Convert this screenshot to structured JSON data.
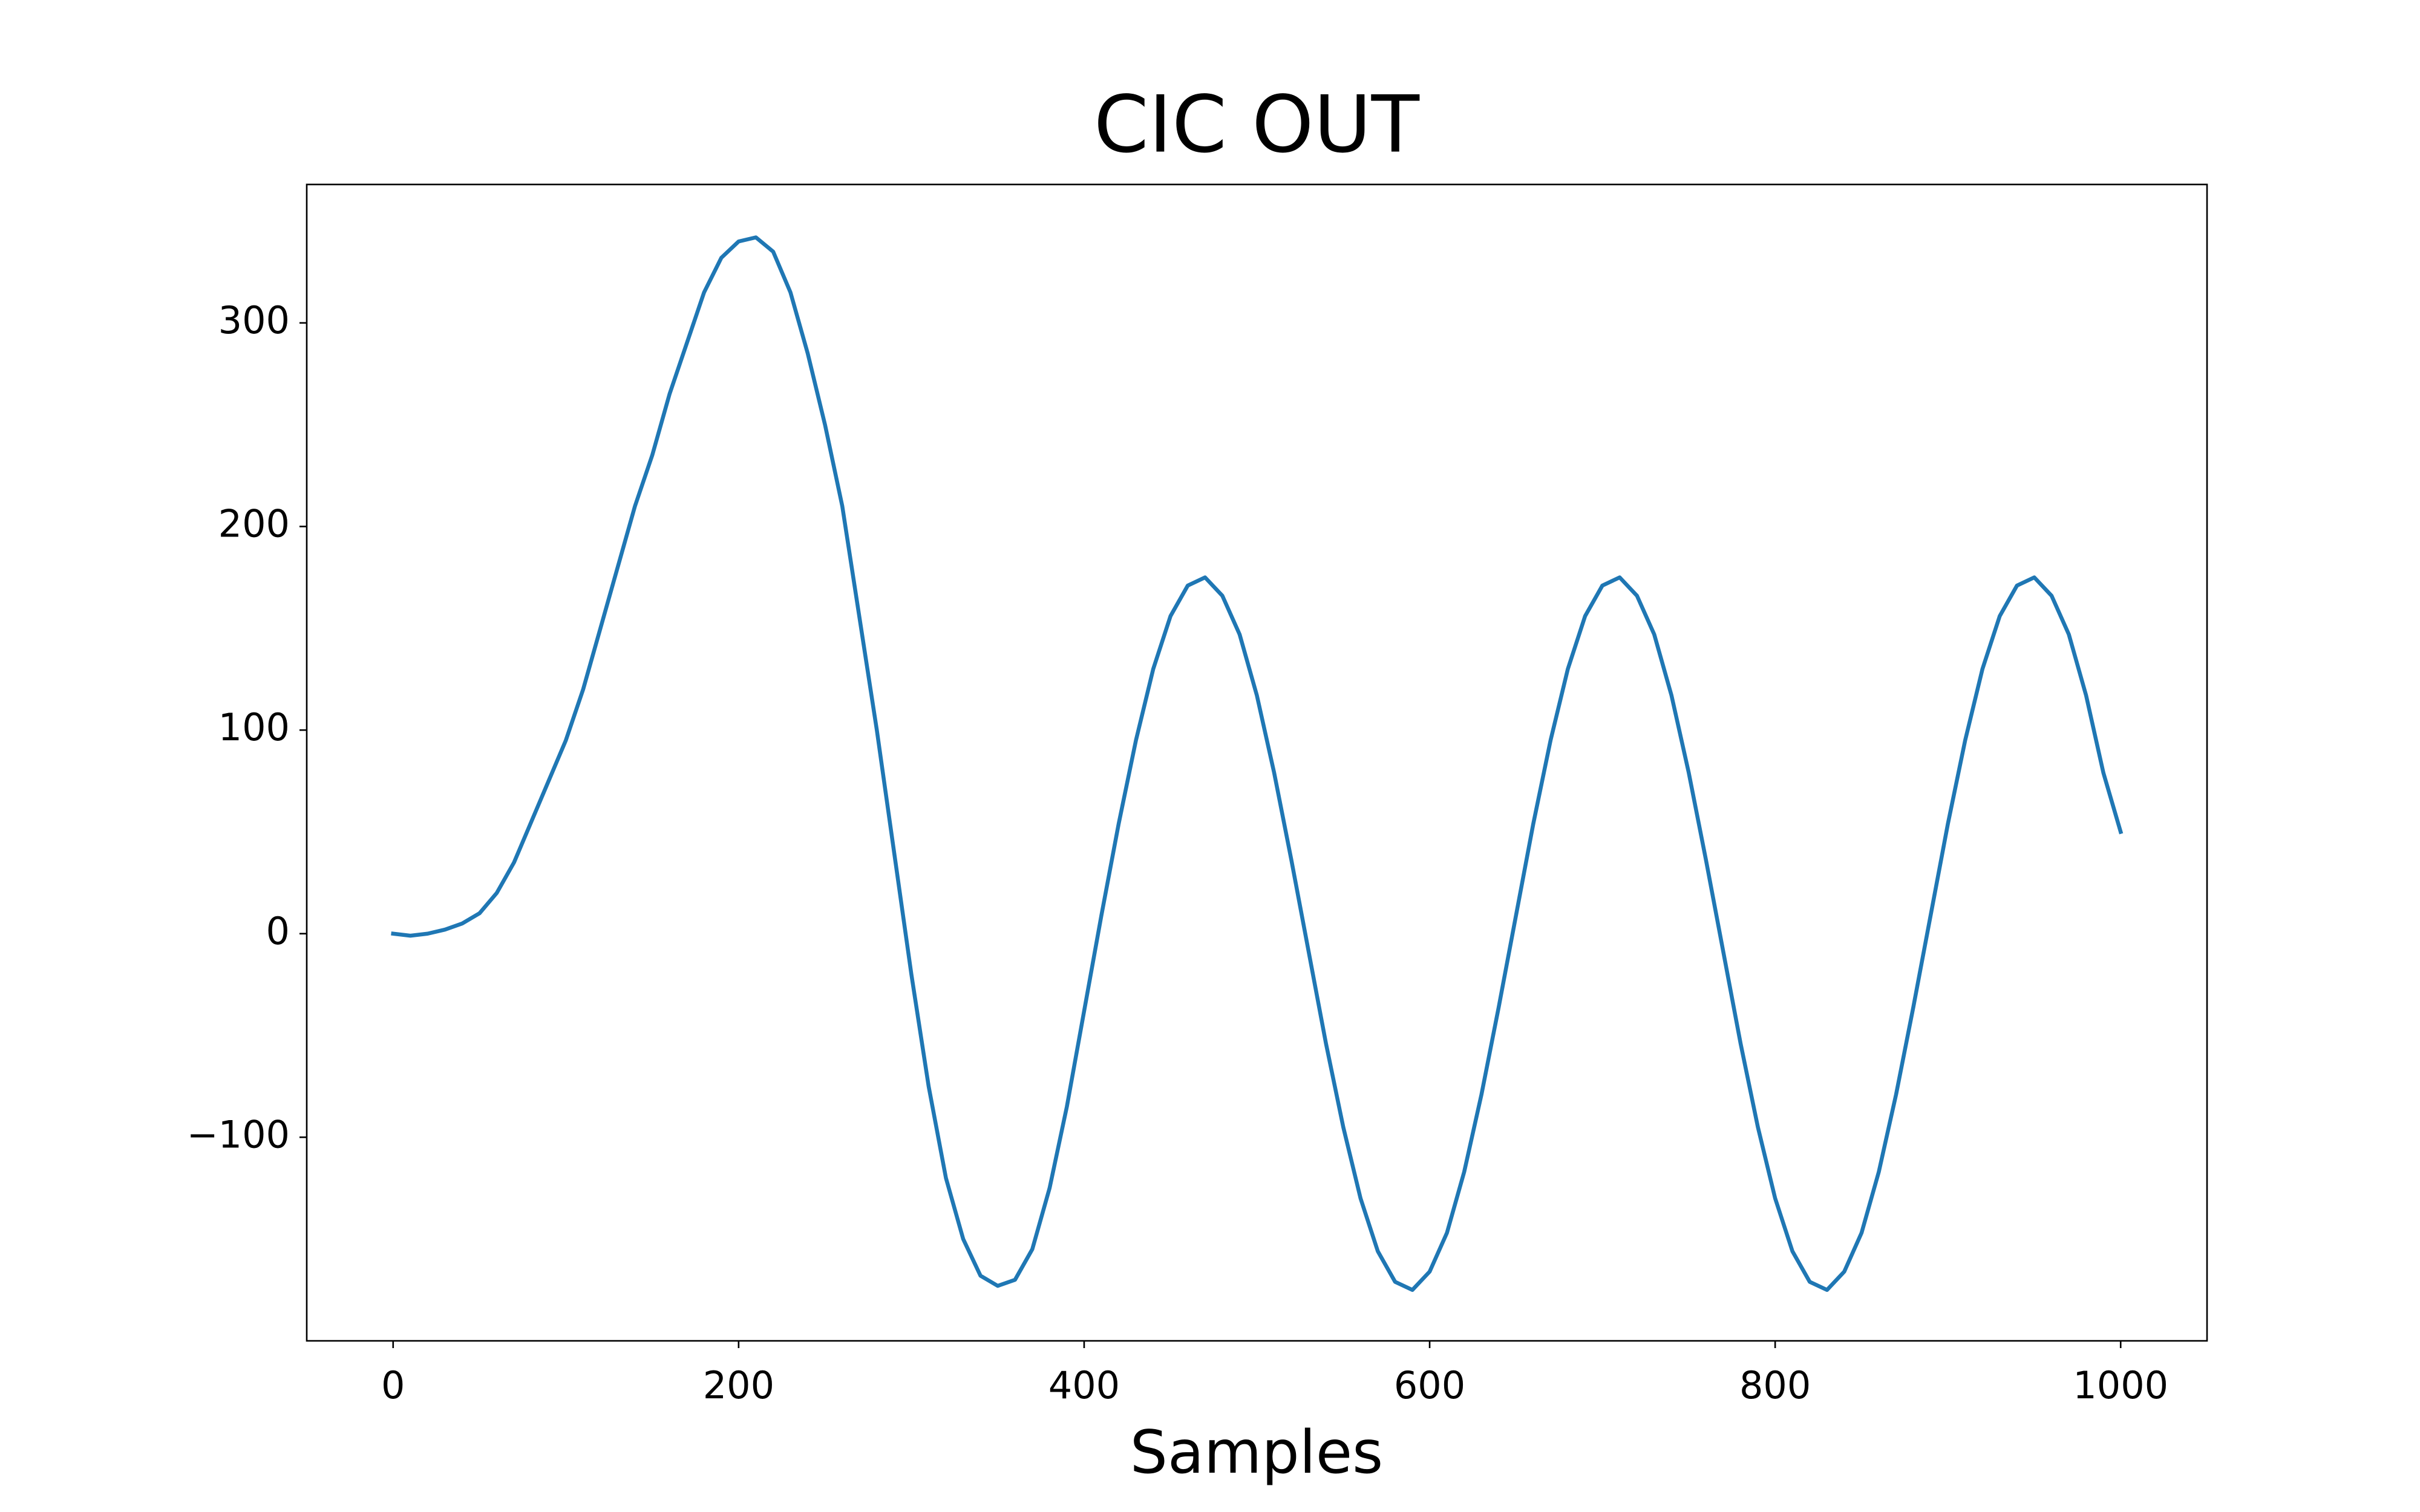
{
  "chart_data": {
    "type": "line",
    "title": "CIC OUT",
    "x_label": "Samples",
    "x": [
      0,
      10,
      20,
      30,
      40,
      50,
      60,
      70,
      80,
      90,
      100,
      110,
      120,
      130,
      140,
      150,
      160,
      170,
      180,
      190,
      200,
      210,
      220,
      230,
      240,
      250,
      260,
      270,
      280,
      290,
      300,
      310,
      320,
      330,
      340,
      350,
      360,
      370,
      380,
      390,
      400,
      410,
      420,
      430,
      440,
      450,
      460,
      470,
      480,
      490,
      500,
      510,
      520,
      530,
      540,
      550,
      560,
      570,
      580,
      590,
      600,
      610,
      620,
      630,
      640,
      650,
      660,
      670,
      680,
      690,
      700,
      710,
      720,
      730,
      740,
      750,
      760,
      770,
      780,
      790,
      800,
      810,
      820,
      830,
      840,
      850,
      860,
      870,
      880,
      890,
      900,
      910,
      920,
      930,
      940,
      950,
      960,
      970,
      980,
      990,
      1000
    ],
    "series": [
      {
        "color": "#1f77b4",
        "values": [
          0,
          -1,
          0,
          2,
          5,
          10,
          20,
          35,
          55,
          75,
          95,
          120,
          150,
          180,
          210,
          235,
          265,
          290,
          315,
          332,
          340,
          342,
          335,
          315,
          285,
          250,
          210,
          155,
          100,
          40,
          -20,
          -75,
          -120,
          -150,
          -168,
          -173,
          -170,
          -155,
          -125,
          -85,
          -38,
          9,
          54,
          95,
          130,
          156,
          171,
          175,
          166,
          147,
          117,
          79,
          36,
          -9,
          -54,
          -95,
          -130,
          -156,
          -171,
          -175,
          -166,
          -147,
          -117,
          -79,
          -36,
          9,
          54,
          95,
          130,
          156,
          171,
          175,
          166,
          147,
          117,
          79,
          36,
          -9,
          -54,
          -95,
          -130,
          -156,
          -171,
          -175,
          -166,
          -147,
          -117,
          -79,
          -36,
          9,
          54,
          95,
          130,
          156,
          171,
          175,
          166,
          147,
          117,
          79,
          50
        ]
      }
    ],
    "xlim": [
      -50,
      1050
    ],
    "ylim": [
      -200,
      368
    ],
    "xticks": [
      0,
      200,
      400,
      600,
      800,
      1000
    ],
    "yticks": [
      {
        "value": -100,
        "label": "−100"
      },
      0,
      100,
      200,
      300
    ],
    "grid": false
  }
}
